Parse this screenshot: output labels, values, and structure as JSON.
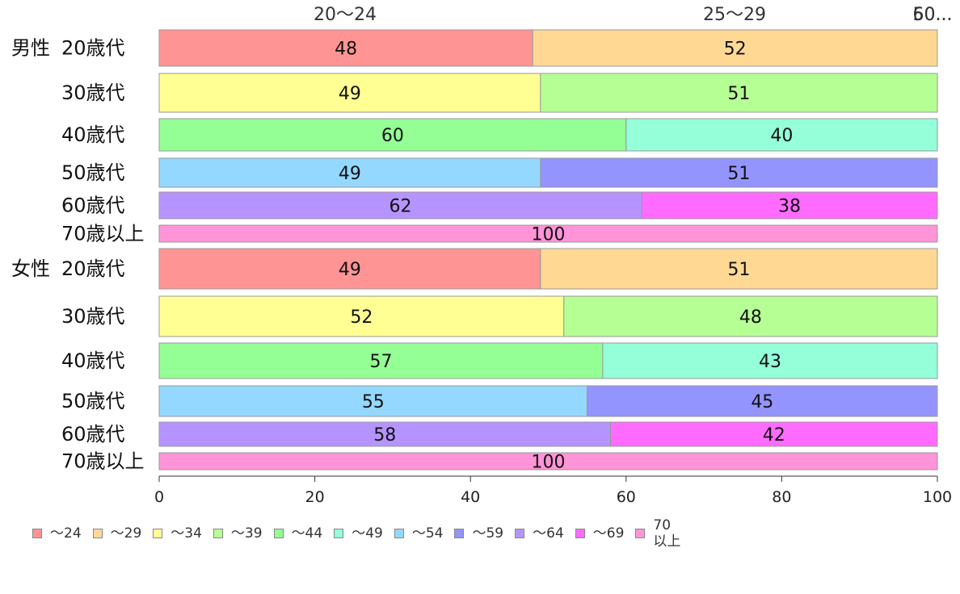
{
  "chart_data": {
    "type": "bar",
    "orientation": "horizontal",
    "stacked": true,
    "groups": [
      "男性",
      "女性"
    ],
    "categories": [
      "20歳代",
      "30歳代",
      "40歳代",
      "50歳代",
      "60歳代",
      "70歳以上"
    ],
    "top_labels": [
      "20〜24",
      "25〜29",
      "50...",
      "60..."
    ],
    "xlim": [
      0,
      100
    ],
    "xticks": [
      "0",
      "20",
      "40",
      "60",
      "80",
      "100"
    ],
    "grid": false,
    "legend_position": "bottom",
    "rows": [
      {
        "group": "男性",
        "category": "20歳代",
        "segments": [
          {
            "s": 0,
            "v": 48
          },
          {
            "s": 1,
            "v": 52
          }
        ]
      },
      {
        "group": "",
        "category": "30歳代",
        "segments": [
          {
            "s": 2,
            "v": 49
          },
          {
            "s": 3,
            "v": 51
          }
        ]
      },
      {
        "group": "",
        "category": "40歳代",
        "segments": [
          {
            "s": 4,
            "v": 60
          },
          {
            "s": 5,
            "v": 40
          }
        ]
      },
      {
        "group": "",
        "category": "50歳代",
        "segments": [
          {
            "s": 6,
            "v": 49
          },
          {
            "s": 7,
            "v": 51
          }
        ]
      },
      {
        "group": "",
        "category": "60歳代",
        "segments": [
          {
            "s": 8,
            "v": 62
          },
          {
            "s": 9,
            "v": 38
          }
        ]
      },
      {
        "group": "",
        "category": "70歳以上",
        "segments": [
          {
            "s": 10,
            "v": 100
          }
        ]
      },
      {
        "group": "女性",
        "category": "20歳代",
        "segments": [
          {
            "s": 0,
            "v": 49
          },
          {
            "s": 1,
            "v": 51
          }
        ]
      },
      {
        "group": "",
        "category": "30歳代",
        "segments": [
          {
            "s": 2,
            "v": 52
          },
          {
            "s": 3,
            "v": 48
          }
        ]
      },
      {
        "group": "",
        "category": "40歳代",
        "segments": [
          {
            "s": 4,
            "v": 57
          },
          {
            "s": 5,
            "v": 43
          }
        ]
      },
      {
        "group": "",
        "category": "50歳代",
        "segments": [
          {
            "s": 6,
            "v": 55
          },
          {
            "s": 7,
            "v": 45
          }
        ]
      },
      {
        "group": "",
        "category": "60歳代",
        "segments": [
          {
            "s": 8,
            "v": 58
          },
          {
            "s": 9,
            "v": 42
          }
        ]
      },
      {
        "group": "",
        "category": "70歳以上",
        "segments": [
          {
            "s": 10,
            "v": 100
          }
        ]
      }
    ],
    "series": [
      {
        "name": "〜24",
        "color": "#ff9494"
      },
      {
        "name": "〜29",
        "color": "#ffd894"
      },
      {
        "name": "〜34",
        "color": "#ffff94"
      },
      {
        "name": "〜39",
        "color": "#b6ff94"
      },
      {
        "name": "〜44",
        "color": "#94ff94"
      },
      {
        "name": "〜49",
        "color": "#94ffd8"
      },
      {
        "name": "〜54",
        "color": "#94d8ff"
      },
      {
        "name": "〜59",
        "color": "#9494ff"
      },
      {
        "name": "〜64",
        "color": "#b694ff"
      },
      {
        "name": "〜69",
        "color": "#ff6bff"
      },
      {
        "name": "70\n以上",
        "color": "#ff94d8"
      }
    ]
  }
}
